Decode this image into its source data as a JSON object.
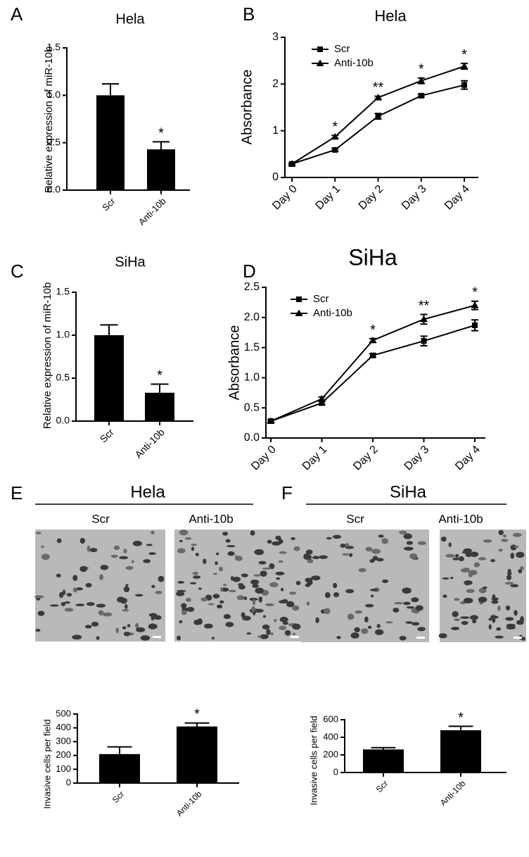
{
  "chart_data": [
    {
      "type": "bar",
      "panel": "A",
      "title": "Hela",
      "ylabel": "Relative expression of miR-10b",
      "categories": [
        "Scr",
        "Anti-10b"
      ],
      "values": [
        1.0,
        0.43
      ],
      "errors": [
        0.12,
        0.08
      ],
      "color": "#000000",
      "ylim": [
        0,
        1.5
      ],
      "yticks": [
        {
          "value": 0,
          "label": "0.0"
        },
        {
          "value": 0.5,
          "label": "0.5"
        },
        {
          "value": 1,
          "label": "1.0"
        },
        {
          "value": 1.5,
          "label": "1.5"
        }
      ],
      "annotations": [
        {
          "category": 1,
          "text": "*"
        }
      ]
    },
    {
      "type": "line",
      "panel": "B",
      "title": "Hela",
      "ylabel": "Absorbance",
      "categories": [
        "Day 0",
        "Day 1",
        "Day 2",
        "Day 3",
        "Day 4"
      ],
      "series": [
        {
          "name": "Scr",
          "color": "#000000",
          "marker": "square",
          "values": [
            0.29,
            0.59,
            1.31,
            1.75,
            1.98
          ],
          "errors": [
            0.02,
            0.03,
            0.06,
            0.03,
            0.09
          ]
        },
        {
          "name": "Anti-10b",
          "color": "#000000",
          "marker": "triangle",
          "values": [
            0.29,
            0.87,
            1.71,
            2.07,
            2.38
          ],
          "errors": [
            0.02,
            0.03,
            0.03,
            0.06,
            0.06
          ]
        }
      ],
      "ylim": [
        0,
        3
      ],
      "yticks": [
        0,
        1,
        2,
        3
      ],
      "legend": "upper left",
      "annotations": [
        {
          "category": 1,
          "text": "*"
        },
        {
          "category": 2,
          "text": "**"
        },
        {
          "category": 3,
          "text": "*"
        },
        {
          "category": 4,
          "text": "*"
        }
      ]
    },
    {
      "type": "bar",
      "panel": "C",
      "title": "SiHa",
      "ylabel": "Relative expression of miR-10b",
      "categories": [
        "Scr",
        "Anti-10b"
      ],
      "values": [
        1.0,
        0.33
      ],
      "errors": [
        0.12,
        0.1
      ],
      "color": "#000000",
      "ylim": [
        0,
        1.5
      ],
      "yticks": [
        {
          "value": 0,
          "label": "0.0"
        },
        {
          "value": 0.5,
          "label": "0.5"
        },
        {
          "value": 1,
          "label": "1.0"
        },
        {
          "value": 1.5,
          "label": "1.5"
        }
      ],
      "annotations": [
        {
          "category": 1,
          "text": "*"
        }
      ]
    },
    {
      "type": "line",
      "panel": "D",
      "title": "SiHa",
      "ylabel": "Absorbance",
      "categories": [
        "Day 0",
        "Day 1",
        "Day 2",
        "Day 3",
        "Day 4"
      ],
      "series": [
        {
          "name": "Scr",
          "color": "#000000",
          "marker": "square",
          "values": [
            0.28,
            0.58,
            1.37,
            1.61,
            1.87
          ],
          "errors": [
            0.02,
            0.03,
            0.03,
            0.08,
            0.09
          ]
        },
        {
          "name": "Anti-10b",
          "color": "#000000",
          "marker": "triangle",
          "values": [
            0.28,
            0.65,
            1.62,
            1.97,
            2.2
          ],
          "errors": [
            0.02,
            0.03,
            0.03,
            0.08,
            0.07
          ]
        }
      ],
      "ylim": [
        0,
        2.5
      ],
      "yticks": [
        {
          "value": 0,
          "label": "0.0"
        },
        {
          "value": 0.5,
          "label": "0.5"
        },
        {
          "value": 1,
          "label": "1.0"
        },
        {
          "value": 1.5,
          "label": "1.5"
        },
        {
          "value": 2,
          "label": "2.0"
        },
        {
          "value": 2.5,
          "label": "2.5"
        }
      ],
      "legend": "upper left",
      "annotations": [
        {
          "category": 2,
          "text": "*"
        },
        {
          "category": 3,
          "text": "**"
        },
        {
          "category": 4,
          "text": "*"
        }
      ]
    },
    {
      "type": "bar",
      "panel": "E",
      "title": "Hela",
      "image_labels": [
        "Scr",
        "Anti-10b"
      ],
      "ylabel": "Invasive cells per field",
      "categories": [
        "Scr",
        "Anti-10b"
      ],
      "values": [
        210,
        410
      ],
      "errors": [
        52,
        25
      ],
      "color": "#000000",
      "ylim": [
        0,
        500
      ],
      "yticks": [
        0,
        100,
        200,
        300,
        400,
        500
      ],
      "annotations": [
        {
          "category": 1,
          "text": "*"
        }
      ]
    },
    {
      "type": "bar",
      "panel": "F",
      "title": "SiHa",
      "image_labels": [
        "Scr",
        "Anti-10b"
      ],
      "ylabel": "Invasive cells per field",
      "categories": [
        "Scr",
        "Anti-10b"
      ],
      "values": [
        262,
        480
      ],
      "errors": [
        20,
        45
      ],
      "color": "#000000",
      "ylim": [
        0,
        600
      ],
      "yticks": [
        0,
        200,
        400,
        600
      ],
      "annotations": [
        {
          "category": 1,
          "text": "*"
        }
      ]
    }
  ]
}
